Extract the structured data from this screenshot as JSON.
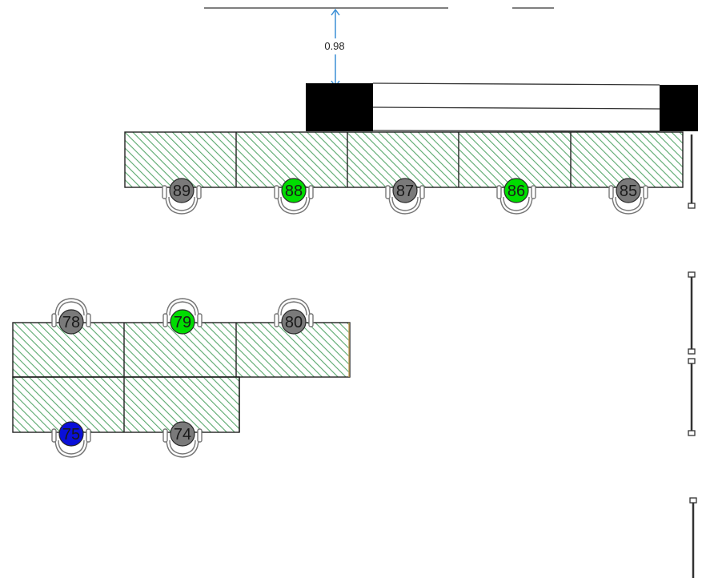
{
  "dimension": {
    "label": "0.98"
  },
  "status_colors": {
    "occupied": "#7a7a7a",
    "available": "#00dd00",
    "selected": "#0a10d8"
  },
  "seats": [
    {
      "number": "89",
      "status": "occupied"
    },
    {
      "number": "88",
      "status": "available"
    },
    {
      "number": "87",
      "status": "occupied"
    },
    {
      "number": "86",
      "status": "available"
    },
    {
      "number": "85",
      "status": "occupied"
    },
    {
      "number": "78",
      "status": "occupied"
    },
    {
      "number": "79",
      "status": "available"
    },
    {
      "number": "80",
      "status": "occupied"
    },
    {
      "number": "75",
      "status": "selected"
    },
    {
      "number": "74",
      "status": "occupied"
    }
  ]
}
